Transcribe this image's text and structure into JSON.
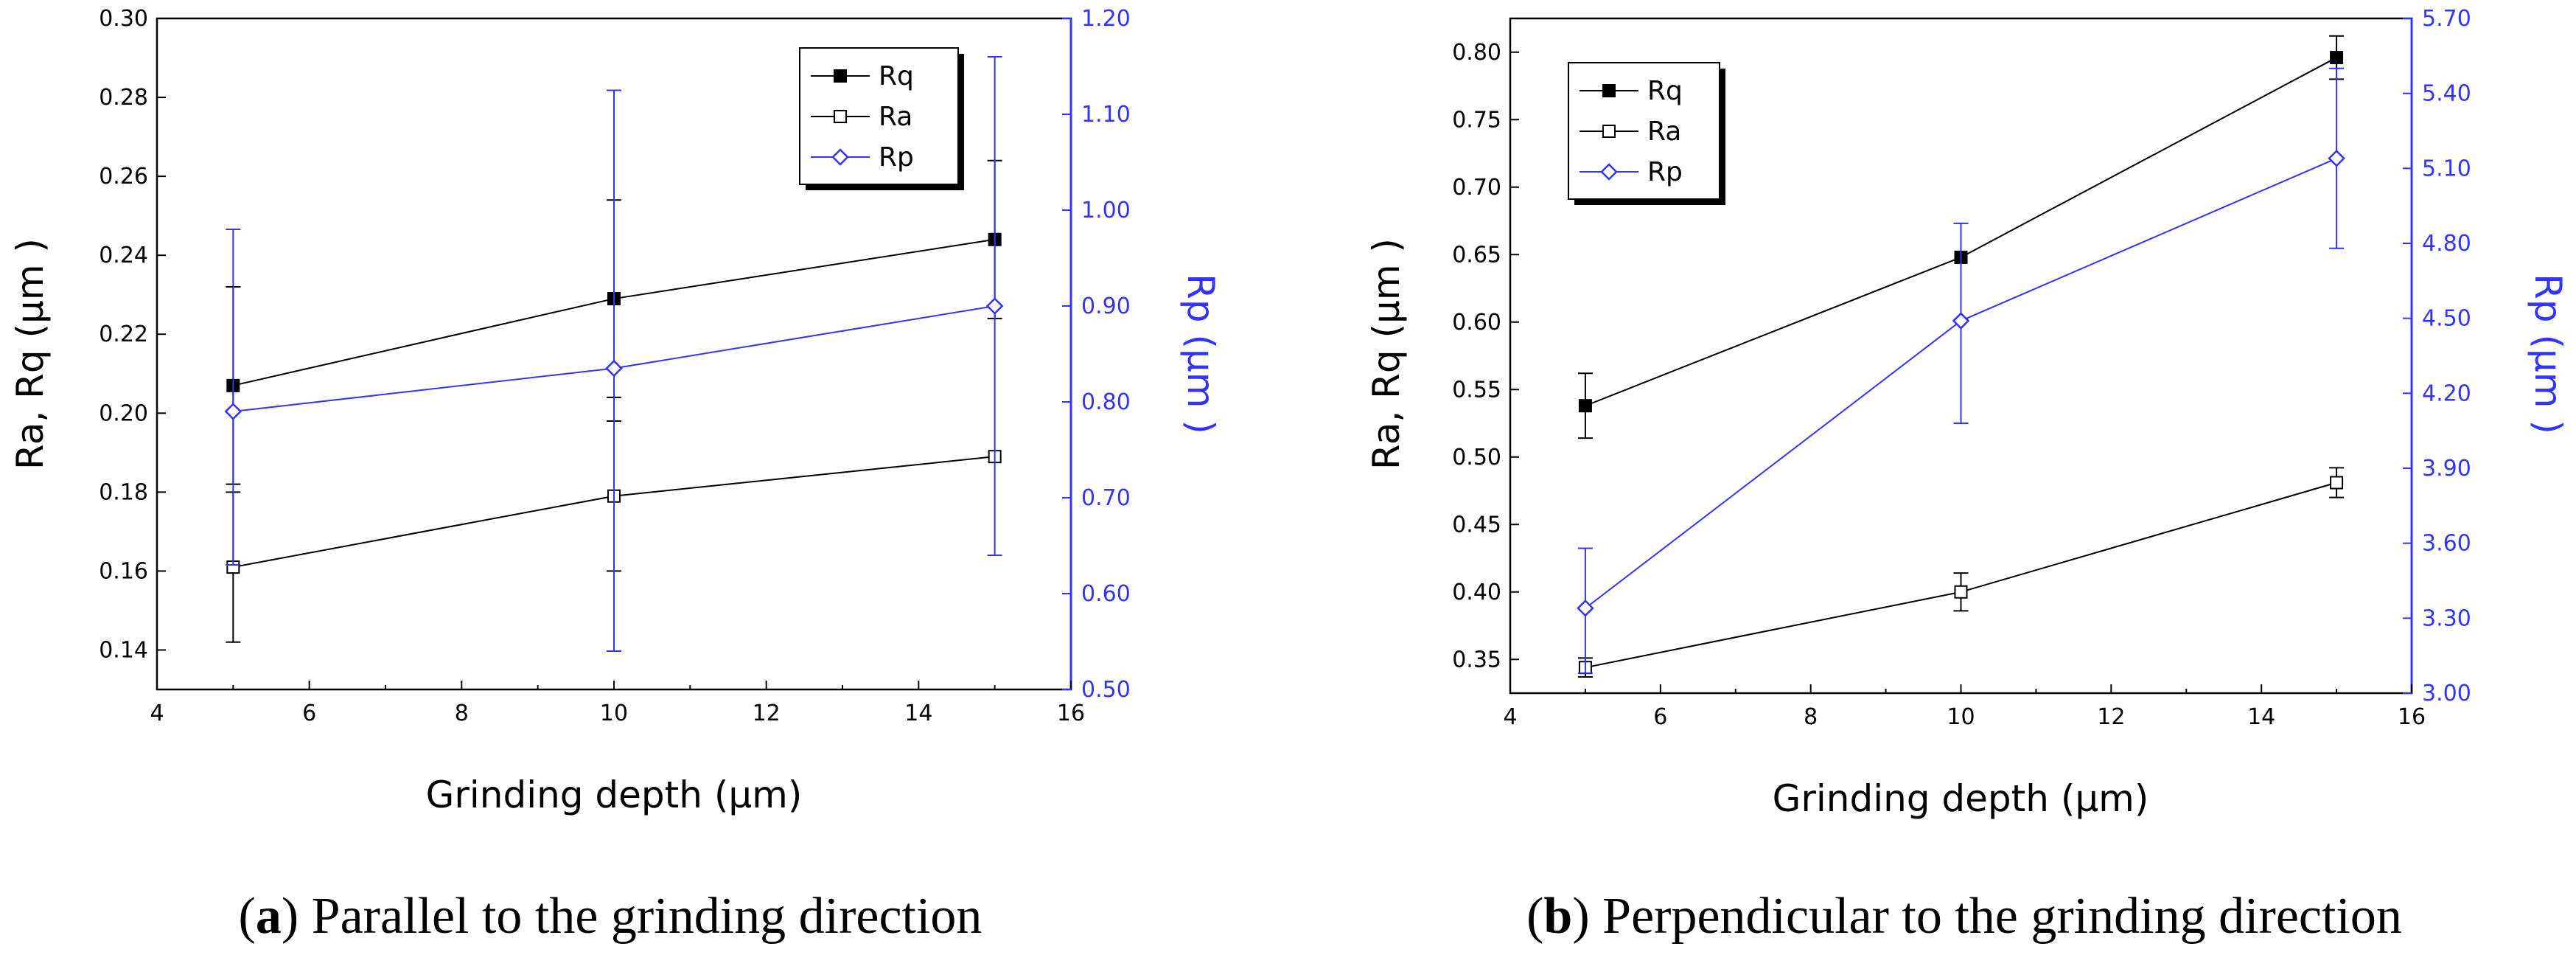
{
  "colors": {
    "black": "#000000",
    "blue": "#3333ff"
  },
  "chart_data": [
    {
      "type": "line",
      "caption_letter": "a",
      "caption_text": ") Parallel to the grinding direction",
      "xlabel": "Grinding depth (μm)",
      "ylabel_left": "Ra, Rq (μm )",
      "ylabel_right": "Rp (μm )",
      "x": [
        5,
        10,
        15
      ],
      "xlim": [
        4,
        16
      ],
      "xticks": [
        "4",
        "6",
        "8",
        "10",
        "12",
        "14",
        "16"
      ],
      "ylim_left": [
        0.13,
        0.3
      ],
      "yticks_left": [
        "0.14",
        "0.16",
        "0.18",
        "0.20",
        "0.22",
        "0.24",
        "0.26",
        "0.28",
        "0.30"
      ],
      "ylim_right": [
        0.5,
        1.2
      ],
      "yticks_right": [
        "0.50",
        "0.60",
        "0.70",
        "0.80",
        "0.90",
        "1.00",
        "1.10",
        "1.20"
      ],
      "series": [
        {
          "name": "Rq",
          "axis": "left",
          "marker": "filled-square",
          "color": "#000000",
          "values": [
            0.207,
            0.229,
            0.244
          ],
          "err_low": [
            0.182,
            0.204,
            0.224
          ],
          "err_high": [
            0.232,
            0.254,
            0.264
          ]
        },
        {
          "name": "Ra",
          "axis": "left",
          "marker": "open-square",
          "color": "#000000",
          "values": [
            0.161,
            0.179,
            0.189
          ],
          "err_low": [
            0.142,
            0.16,
            0.189
          ],
          "err_high": [
            0.18,
            0.198,
            0.189
          ]
        },
        {
          "name": "Rp",
          "axis": "right",
          "marker": "open-diamond",
          "color": "#3333ff",
          "values": [
            0.79,
            0.835,
            0.9
          ],
          "err_low": [
            0.63,
            0.54,
            0.64
          ],
          "err_high": [
            0.98,
            1.125,
            1.16
          ]
        }
      ]
    },
    {
      "type": "line",
      "caption_letter": "b",
      "caption_text": ") Perpendicular to the grinding direction",
      "xlabel": "Grinding depth (μm)",
      "ylabel_left": "Ra, Rq (μm )",
      "ylabel_right": "Rp (μm )",
      "x": [
        5,
        10,
        15
      ],
      "xlim": [
        4,
        16
      ],
      "xticks": [
        "4",
        "6",
        "8",
        "10",
        "12",
        "14",
        "16"
      ],
      "ylim_left": [
        0.325,
        0.825
      ],
      "yticks_left": [
        "0.35",
        "0.40",
        "0.45",
        "0.50",
        "0.55",
        "0.60",
        "0.65",
        "0.70",
        "0.75",
        "0.80"
      ],
      "ylim_right": [
        3.0,
        5.7
      ],
      "yticks_right": [
        "3.00",
        "3.30",
        "3.60",
        "3.90",
        "4.20",
        "4.50",
        "4.80",
        "5.10",
        "5.40",
        "5.70"
      ],
      "series": [
        {
          "name": "Rq",
          "axis": "left",
          "marker": "filled-square",
          "color": "#000000",
          "values": [
            0.538,
            0.648,
            0.796
          ],
          "err_low": [
            0.514,
            0.648,
            0.78
          ],
          "err_high": [
            0.562,
            0.648,
            0.812
          ]
        },
        {
          "name": "Ra",
          "axis": "left",
          "marker": "open-square",
          "color": "#000000",
          "values": [
            0.344,
            0.4,
            0.481
          ],
          "err_low": [
            0.337,
            0.386,
            0.47
          ],
          "err_high": [
            0.351,
            0.414,
            0.492
          ]
        },
        {
          "name": "Rp",
          "axis": "right",
          "marker": "open-diamond",
          "color": "#3333ff",
          "values": [
            3.34,
            4.49,
            5.14
          ],
          "err_low": [
            3.08,
            4.08,
            4.78
          ],
          "err_high": [
            3.58,
            4.88,
            5.5
          ]
        }
      ]
    }
  ]
}
